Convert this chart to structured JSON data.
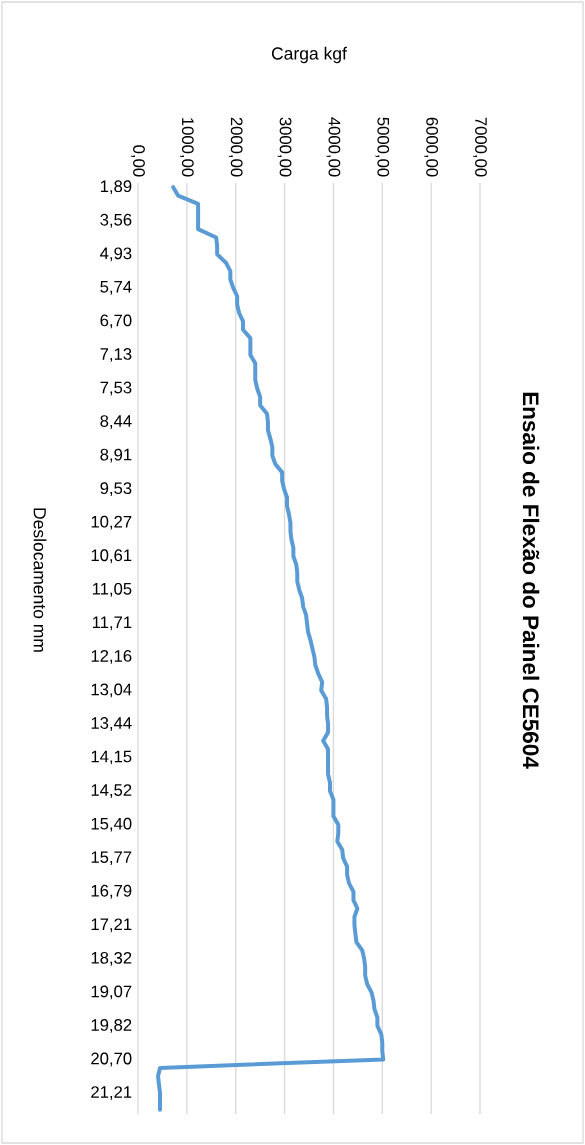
{
  "chart_data": {
    "type": "line",
    "orientation": "horizontal",
    "title": "Ensaio de Flexão do Painel CE5604",
    "xlabel": "Carga kgf",
    "ylabel": "Deslocamento mm",
    "categories": [
      "1,89",
      null,
      null,
      null,
      "3,56",
      null,
      null,
      null,
      "4,93",
      null,
      null,
      null,
      "5,74",
      null,
      null,
      null,
      "6,70",
      null,
      null,
      null,
      "7,13",
      null,
      null,
      null,
      "7,53",
      null,
      null,
      null,
      "8,44",
      null,
      null,
      null,
      "8,91",
      null,
      null,
      null,
      "9,53",
      null,
      null,
      null,
      "10,27",
      null,
      null,
      null,
      "10,61",
      null,
      null,
      null,
      "11,05",
      null,
      null,
      null,
      "11,71",
      null,
      null,
      null,
      "12,16",
      null,
      null,
      null,
      "13,04",
      null,
      null,
      null,
      "13,44",
      null,
      null,
      null,
      "14,15",
      null,
      null,
      null,
      "14,52",
      null,
      null,
      null,
      "15,40",
      null,
      null,
      null,
      "15,77",
      null,
      null,
      null,
      "16,79",
      null,
      null,
      null,
      "17,21",
      null,
      null,
      null,
      "18,32",
      null,
      null,
      null,
      "19,07",
      null,
      null,
      null,
      "19,82",
      null,
      null,
      null,
      "20,70",
      null,
      null,
      null,
      "21,21",
      null,
      null
    ],
    "values": [
      720,
      820,
      1230,
      1230,
      1230,
      1230,
      1600,
      1620,
      1620,
      1800,
      1890,
      1890,
      1950,
      2030,
      2030,
      2070,
      2150,
      2150,
      2300,
      2300,
      2300,
      2400,
      2400,
      2400,
      2440,
      2500,
      2500,
      2640,
      2660,
      2660,
      2710,
      2750,
      2750,
      2810,
      2950,
      2950,
      2990,
      3050,
      3050,
      3090,
      3120,
      3120,
      3140,
      3180,
      3180,
      3240,
      3260,
      3260,
      3300,
      3360,
      3380,
      3440,
      3460,
      3480,
      3530,
      3570,
      3610,
      3630,
      3690,
      3770,
      3750,
      3850,
      3870,
      3870,
      3890,
      3890,
      3790,
      3890,
      3890,
      3890,
      3890,
      3930,
      3930,
      4000,
      4000,
      4000,
      4100,
      4100,
      4080,
      4180,
      4200,
      4280,
      4280,
      4320,
      4410,
      4410,
      4490,
      4430,
      4430,
      4450,
      4470,
      4590,
      4630,
      4650,
      4650,
      4690,
      4780,
      4820,
      4840,
      4900,
      4900,
      4980,
      5000,
      5000,
      5020,
      450,
      410,
      430,
      450,
      450,
      450
    ],
    "color": "#5b9bd5",
    "xlim": [
      0,
      7000
    ],
    "xticks": [
      {
        "value": 0,
        "label": "0,00"
      },
      {
        "value": 1000,
        "label": "1000,00"
      },
      {
        "value": 2000,
        "label": "2000,00"
      },
      {
        "value": 3000,
        "label": "3000,00"
      },
      {
        "value": 4000,
        "label": "4000,00"
      },
      {
        "value": 5000,
        "label": "5000,00"
      },
      {
        "value": 6000,
        "label": "6000,00"
      },
      {
        "value": 7000,
        "label": "7000,00"
      }
    ],
    "grid": "x"
  }
}
